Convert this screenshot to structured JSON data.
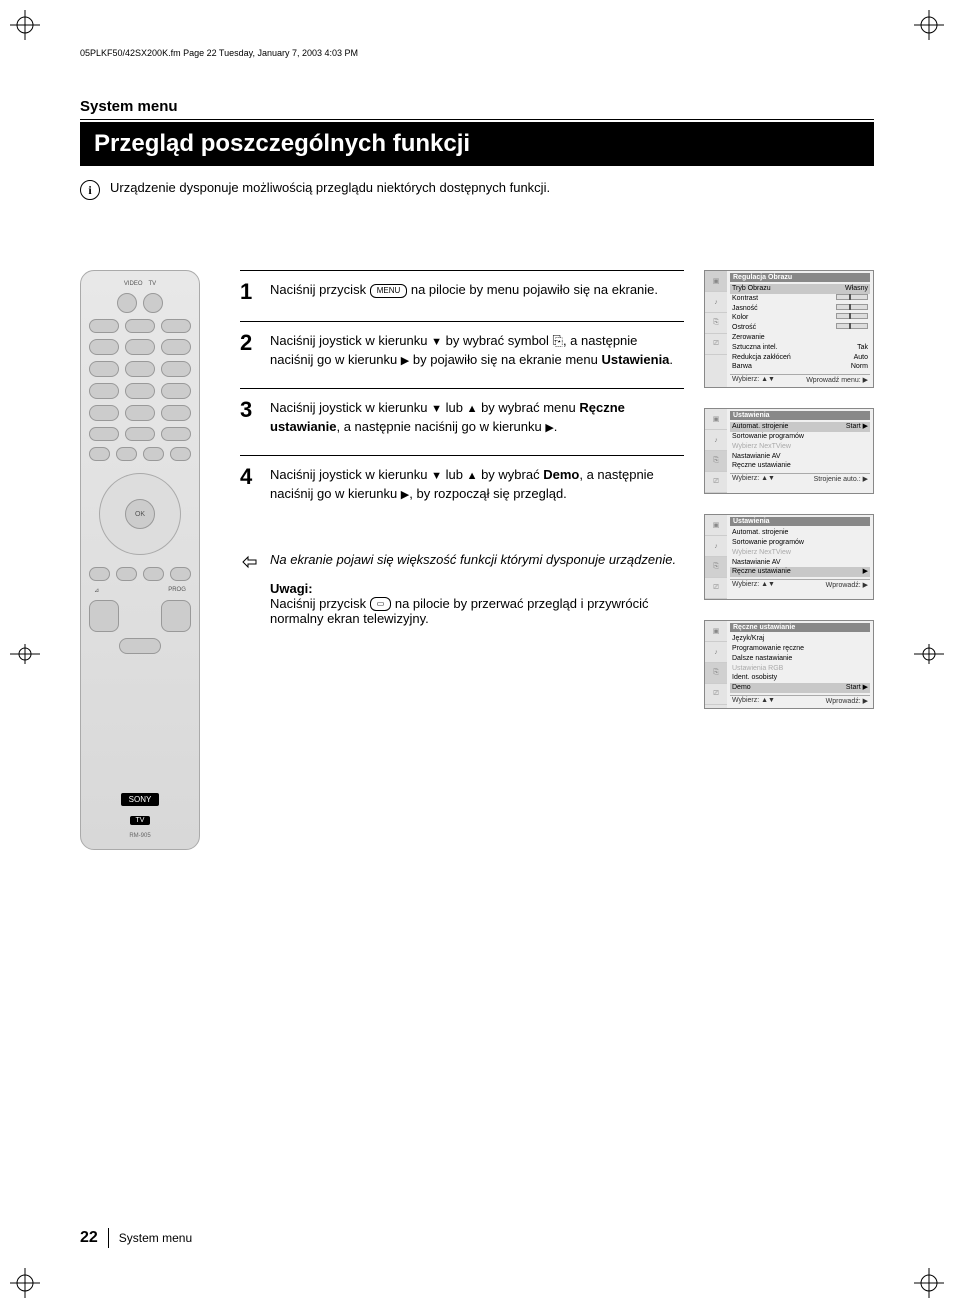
{
  "header_path": "05PLKF50/42SX200K.fm  Page 22  Tuesday, January 7, 2003  4:03 PM",
  "section_label": "System menu",
  "title": "Przegląd poszczególnych funkcji",
  "intro": "Urządzenie dysponuje możliwością przeglądu niektórych dostępnych funkcji.",
  "remote": {
    "labels_top": [
      "VIDEO",
      "TV"
    ],
    "ok": "OK",
    "prog": "PROG",
    "brand": "SONY",
    "tv": "TV",
    "model": "RM-905"
  },
  "steps": {
    "s1": {
      "num": "1",
      "pre": "Naciśnij przycisk ",
      "btn": "MENU",
      "post": " na pilocie by menu pojawiło się na ekranie."
    },
    "s2": {
      "num": "2",
      "pre": "Naciśnij joystick w kierunku ",
      "a1": "▼",
      "mid1": " by wybrać symbol ",
      "sym": "⎘",
      "mid2": ", a następnie naciśnij go w kierunku ",
      "a2": "▶",
      "mid3": " by pojawiło się na ekranie menu ",
      "bold": "Ustawienia",
      "end": "."
    },
    "s3": {
      "num": "3",
      "pre": "Naciśnij joystick w kierunku ",
      "a1": "▼",
      "mid1": " lub ",
      "a2": "▲",
      "mid2": " by wybrać menu ",
      "bold": "Ręczne ustawianie",
      "mid3": ", a następnie naciśnij go w kierunku ",
      "a3": "▶",
      "end": "."
    },
    "s4": {
      "num": "4",
      "pre": "Naciśnij joystick w kierunku ",
      "a1": "▼",
      "mid1": " lub ",
      "a2": "▲",
      "mid2": " by wybrać ",
      "bold": "Demo",
      "mid3": ", a następnie naciśnij go w kierunku ",
      "a3": "▶",
      "end": ", by rozpoczął się przegląd."
    }
  },
  "note": {
    "italic": "Na ekranie pojawi się większość funkcji którymi dysponuje urządzenie.",
    "uwagi_label": "Uwagi:",
    "uwagi_pre": "Naciśnij przycisk ",
    "uwagi_post": " na pilocie by przerwać przegląd i przywrócić normalny ekran telewizyjny."
  },
  "osd1": {
    "title": "Regulacja Obrazu",
    "rows": [
      {
        "k": "Tryb Obrazu",
        "v": "Własny",
        "hl": true
      },
      {
        "k": "Kontrast",
        "slider": true
      },
      {
        "k": "Jasność",
        "slider": true
      },
      {
        "k": "Kolor",
        "slider": true
      },
      {
        "k": "Ostrość",
        "slider": true
      },
      {
        "k": "Zerowanie",
        "v": ""
      },
      {
        "k": "Sztuczna intel.",
        "v": "Tak"
      },
      {
        "k": "Redukcja zakłóceń",
        "v": "Auto"
      },
      {
        "k": "Barwa",
        "v": "Norm"
      }
    ],
    "footL": "Wybierz: ▲▼",
    "footR": "Wprowadź menu: ▶"
  },
  "osd2": {
    "title": "Ustawienia",
    "rows": [
      {
        "k": "Automat. strojenie",
        "v": "Start ▶",
        "hl": true
      },
      {
        "k": "Sortowanie programów"
      },
      {
        "k": "Wybierz NexTView",
        "dim": true
      },
      {
        "k": "Nastawianie AV"
      },
      {
        "k": "Ręczne ustawianie"
      }
    ],
    "footL": "Wybierz: ▲▼",
    "footR": "Strojenie auto.: ▶"
  },
  "osd3": {
    "title": "Ustawienia",
    "rows": [
      {
        "k": "Automat. strojenie"
      },
      {
        "k": "Sortowanie programów"
      },
      {
        "k": "Wybierz NexTView",
        "dim": true
      },
      {
        "k": "Nastawianie AV"
      },
      {
        "k": "Ręczne ustawianie",
        "v": "▶",
        "hl": true
      }
    ],
    "footL": "Wybierz: ▲▼",
    "footR": "Wprowadź: ▶"
  },
  "osd4": {
    "title": "Ręczne ustawianie",
    "rows": [
      {
        "k": "Język/Kraj"
      },
      {
        "k": "Programowanie ręczne"
      },
      {
        "k": "Dalsze nastawianie"
      },
      {
        "k": "Ustawienia RGB",
        "dim": true
      },
      {
        "k": "Ident. osobisty"
      },
      {
        "k": "Demo",
        "v": "Start ▶",
        "hl": true
      }
    ],
    "footL": "Wybierz: ▲▼",
    "footR": "Wprowadź: ▶"
  },
  "footer": {
    "page": "22",
    "label": "System menu"
  }
}
